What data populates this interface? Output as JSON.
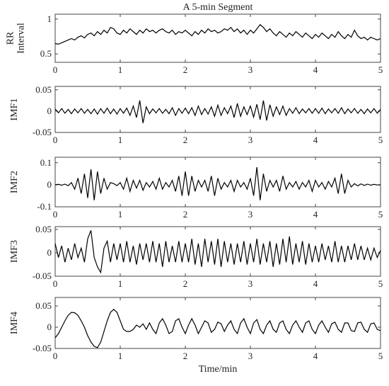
{
  "chart_data": [
    {
      "type": "line",
      "title": "A 5-min Segment",
      "ylabel": [
        "RR",
        "Interval"
      ],
      "x": [
        0,
        0.05,
        0.1,
        0.15,
        0.2,
        0.25,
        0.3,
        0.35,
        0.4,
        0.45,
        0.5,
        0.55,
        0.6,
        0.65,
        0.7,
        0.75,
        0.8,
        0.85,
        0.9,
        0.95,
        1,
        1.05,
        1.1,
        1.15,
        1.2,
        1.25,
        1.3,
        1.35,
        1.4,
        1.45,
        1.5,
        1.55,
        1.6,
        1.65,
        1.7,
        1.75,
        1.8,
        1.85,
        1.9,
        1.95,
        2,
        2.05,
        2.1,
        2.15,
        2.2,
        2.25,
        2.3,
        2.35,
        2.4,
        2.45,
        2.5,
        2.55,
        2.6,
        2.65,
        2.7,
        2.75,
        2.8,
        2.85,
        2.9,
        2.95,
        3,
        3.05,
        3.1,
        3.15,
        3.2,
        3.25,
        3.3,
        3.35,
        3.4,
        3.45,
        3.5,
        3.55,
        3.6,
        3.65,
        3.7,
        3.75,
        3.8,
        3.85,
        3.9,
        3.95,
        4,
        4.05,
        4.1,
        4.15,
        4.2,
        4.25,
        4.3,
        4.35,
        4.4,
        4.45,
        4.5,
        4.55,
        4.6,
        4.65,
        4.7,
        4.75,
        4.8,
        4.85,
        4.9,
        4.95,
        5
      ],
      "values": [
        0.65,
        0.64,
        0.66,
        0.68,
        0.7,
        0.72,
        0.7,
        0.74,
        0.76,
        0.73,
        0.78,
        0.8,
        0.76,
        0.82,
        0.78,
        0.84,
        0.8,
        0.88,
        0.86,
        0.8,
        0.78,
        0.84,
        0.8,
        0.86,
        0.82,
        0.78,
        0.84,
        0.8,
        0.86,
        0.82,
        0.84,
        0.8,
        0.84,
        0.86,
        0.82,
        0.8,
        0.84,
        0.78,
        0.82,
        0.8,
        0.84,
        0.8,
        0.76,
        0.82,
        0.78,
        0.84,
        0.8,
        0.86,
        0.82,
        0.84,
        0.8,
        0.82,
        0.86,
        0.84,
        0.88,
        0.82,
        0.86,
        0.8,
        0.84,
        0.78,
        0.84,
        0.8,
        0.86,
        0.92,
        0.88,
        0.82,
        0.86,
        0.8,
        0.76,
        0.82,
        0.78,
        0.74,
        0.8,
        0.76,
        0.82,
        0.78,
        0.74,
        0.8,
        0.76,
        0.72,
        0.78,
        0.74,
        0.8,
        0.76,
        0.72,
        0.78,
        0.74,
        0.82,
        0.76,
        0.72,
        0.78,
        0.74,
        0.84,
        0.76,
        0.72,
        0.74,
        0.7,
        0.74,
        0.72,
        0.7,
        0.72
      ],
      "color": "#000000",
      "xlim": [
        0,
        5
      ],
      "xticks": [
        0,
        1,
        2,
        3,
        4,
        5
      ],
      "ylim": [
        0.38,
        1.07
      ],
      "yticks": [
        0.5,
        1
      ]
    },
    {
      "type": "line",
      "ylabel": "IMF1",
      "x": [
        0,
        0.05,
        0.1,
        0.15,
        0.2,
        0.25,
        0.3,
        0.35,
        0.4,
        0.45,
        0.5,
        0.55,
        0.6,
        0.65,
        0.7,
        0.75,
        0.8,
        0.85,
        0.9,
        0.95,
        1,
        1.05,
        1.1,
        1.15,
        1.2,
        1.25,
        1.3,
        1.35,
        1.4,
        1.45,
        1.5,
        1.55,
        1.6,
        1.65,
        1.7,
        1.75,
        1.8,
        1.85,
        1.9,
        1.95,
        2,
        2.05,
        2.1,
        2.15,
        2.2,
        2.25,
        2.3,
        2.35,
        2.4,
        2.45,
        2.5,
        2.55,
        2.6,
        2.65,
        2.7,
        2.75,
        2.8,
        2.85,
        2.9,
        2.95,
        3,
        3.05,
        3.1,
        3.15,
        3.2,
        3.25,
        3.3,
        3.35,
        3.4,
        3.45,
        3.5,
        3.55,
        3.6,
        3.65,
        3.7,
        3.75,
        3.8,
        3.85,
        3.9,
        3.95,
        4,
        4.05,
        4.1,
        4.15,
        4.2,
        4.25,
        4.3,
        4.35,
        4.4,
        4.45,
        4.5,
        4.55,
        4.6,
        4.65,
        4.7,
        4.75,
        4.8,
        4.85,
        4.9,
        4.95,
        5
      ],
      "values": [
        0.005,
        -0.004,
        0.006,
        -0.005,
        0.004,
        -0.006,
        0.005,
        -0.004,
        0.006,
        -0.005,
        0.004,
        -0.006,
        0.005,
        -0.007,
        0.006,
        -0.005,
        0.007,
        -0.006,
        0.005,
        -0.007,
        0.006,
        -0.005,
        0.007,
        -0.01,
        0.012,
        -0.015,
        0.025,
        -0.028,
        0.01,
        -0.006,
        0.005,
        -0.004,
        0.006,
        -0.005,
        0.004,
        -0.006,
        0.008,
        -0.01,
        0.006,
        -0.005,
        0.007,
        -0.006,
        0.008,
        -0.01,
        0.012,
        -0.008,
        0.006,
        -0.007,
        0.01,
        -0.012,
        0.014,
        -0.01,
        0.008,
        -0.006,
        0.012,
        -0.015,
        0.018,
        -0.012,
        0.01,
        -0.008,
        0.012,
        -0.014,
        0.016,
        -0.02,
        0.025,
        -0.022,
        0.015,
        -0.012,
        0.01,
        -0.008,
        0.012,
        -0.01,
        0.006,
        -0.005,
        0.008,
        -0.006,
        0.005,
        -0.004,
        0.006,
        -0.005,
        0.006,
        -0.005,
        0.007,
        -0.006,
        0.005,
        -0.004,
        0.006,
        -0.005,
        0.008,
        -0.006,
        0.005,
        -0.004,
        0.006,
        -0.005,
        0.004,
        -0.006,
        0.005,
        -0.004,
        0.006,
        -0.005,
        0.004
      ],
      "color": "#000000",
      "xlim": [
        0,
        5
      ],
      "xticks": [
        0,
        1,
        2,
        3,
        4,
        5
      ],
      "ylim": [
        -0.05,
        0.058
      ],
      "yticks": [
        -0.05,
        0,
        0.05
      ]
    },
    {
      "type": "line",
      "ylabel": "IMF2",
      "x": [
        0,
        0.05,
        0.1,
        0.15,
        0.2,
        0.25,
        0.3,
        0.35,
        0.4,
        0.45,
        0.5,
        0.55,
        0.6,
        0.65,
        0.7,
        0.75,
        0.8,
        0.85,
        0.9,
        0.95,
        1,
        1.05,
        1.1,
        1.15,
        1.2,
        1.25,
        1.3,
        1.35,
        1.4,
        1.45,
        1.5,
        1.55,
        1.6,
        1.65,
        1.7,
        1.75,
        1.8,
        1.85,
        1.9,
        1.95,
        2,
        2.05,
        2.1,
        2.15,
        2.2,
        2.25,
        2.3,
        2.35,
        2.4,
        2.45,
        2.5,
        2.55,
        2.6,
        2.65,
        2.7,
        2.75,
        2.8,
        2.85,
        2.9,
        2.95,
        3,
        3.05,
        3.1,
        3.15,
        3.2,
        3.25,
        3.3,
        3.35,
        3.4,
        3.45,
        3.5,
        3.55,
        3.6,
        3.65,
        3.7,
        3.75,
        3.8,
        3.85,
        3.9,
        3.95,
        4,
        4.05,
        4.1,
        4.15,
        4.2,
        4.25,
        4.3,
        4.35,
        4.4,
        4.45,
        4.5,
        4.55,
        4.6,
        4.65,
        4.7,
        4.75,
        4.8,
        4.85,
        4.9,
        4.95,
        5
      ],
      "values": [
        0,
        0.002,
        -0.002,
        0.003,
        -0.004,
        0.01,
        -0.02,
        0.03,
        -0.04,
        0.05,
        -0.06,
        0.07,
        -0.07,
        0.06,
        -0.04,
        0.03,
        -0.02,
        0.01,
        0.005,
        -0.004,
        0.01,
        -0.02,
        0.03,
        -0.03,
        0.02,
        -0.015,
        0.02,
        -0.025,
        0.01,
        -0.01,
        0.015,
        -0.02,
        0.03,
        -0.02,
        0.01,
        -0.01,
        0.02,
        -0.03,
        0.04,
        -0.05,
        0.06,
        -0.05,
        0.04,
        -0.03,
        0.02,
        -0.01,
        0.02,
        -0.03,
        0.04,
        -0.05,
        0.03,
        -0.02,
        0.01,
        -0.01,
        0.02,
        -0.03,
        0.02,
        -0.01,
        0.01,
        -0.02,
        0.03,
        -0.05,
        0.08,
        -0.07,
        0.05,
        -0.03,
        0.02,
        -0.01,
        0.02,
        -0.03,
        0.04,
        -0.02,
        0.01,
        -0.01,
        0.015,
        -0.02,
        0.01,
        -0.01,
        0.02,
        -0.03,
        0.02,
        -0.01,
        0.01,
        -0.02,
        0.015,
        -0.01,
        0.03,
        -0.04,
        0.05,
        -0.04,
        0.02,
        -0.01,
        0.005,
        -0.005,
        0.004,
        -0.003,
        0.003,
        -0.002,
        0.002,
        -0.001,
        0
      ],
      "color": "#000000",
      "xlim": [
        0,
        5
      ],
      "xticks": [
        0,
        1,
        2,
        3,
        4,
        5
      ],
      "ylim": [
        -0.1,
        0.125
      ],
      "yticks": [
        -0.1,
        0,
        0.1
      ]
    },
    {
      "type": "line",
      "ylabel": "IMF3",
      "x": [
        0,
        0.05,
        0.1,
        0.15,
        0.2,
        0.25,
        0.3,
        0.35,
        0.4,
        0.45,
        0.5,
        0.55,
        0.6,
        0.65,
        0.7,
        0.75,
        0.8,
        0.85,
        0.9,
        0.95,
        1,
        1.05,
        1.1,
        1.15,
        1.2,
        1.25,
        1.3,
        1.35,
        1.4,
        1.45,
        1.5,
        1.55,
        1.6,
        1.65,
        1.7,
        1.75,
        1.8,
        1.85,
        1.9,
        1.95,
        2,
        2.05,
        2.1,
        2.15,
        2.2,
        2.25,
        2.3,
        2.35,
        2.4,
        2.45,
        2.5,
        2.55,
        2.6,
        2.65,
        2.7,
        2.75,
        2.8,
        2.85,
        2.9,
        2.95,
        3,
        3.05,
        3.1,
        3.15,
        3.2,
        3.25,
        3.3,
        3.35,
        3.4,
        3.45,
        3.5,
        3.55,
        3.6,
        3.65,
        3.7,
        3.75,
        3.8,
        3.85,
        3.9,
        3.95,
        4,
        4.05,
        4.1,
        4.15,
        4.2,
        4.25,
        4.3,
        4.35,
        4.4,
        4.45,
        4.5,
        4.55,
        4.6,
        4.65,
        4.7,
        4.75,
        4.8,
        4.85,
        4.9,
        4.95,
        5
      ],
      "values": [
        0.02,
        -0.01,
        0.015,
        -0.02,
        0.01,
        -0.015,
        0.02,
        -0.01,
        0.01,
        -0.02,
        0.03,
        0.048,
        -0.01,
        -0.03,
        -0.042,
        0.01,
        0.025,
        -0.02,
        0.02,
        -0.015,
        0.02,
        -0.02,
        0.025,
        -0.02,
        0.015,
        -0.025,
        0.02,
        -0.015,
        0.02,
        -0.02,
        0.025,
        -0.02,
        0.02,
        -0.03,
        0.025,
        -0.02,
        0.015,
        -0.02,
        0.025,
        -0.02,
        0.02,
        -0.02,
        0.03,
        -0.025,
        0.02,
        -0.03,
        0.03,
        -0.02,
        0.025,
        -0.025,
        0.03,
        -0.03,
        0.025,
        -0.02,
        0.02,
        -0.025,
        0.02,
        -0.02,
        0.025,
        -0.025,
        0.02,
        -0.02,
        0.03,
        -0.025,
        0.02,
        -0.02,
        0.025,
        -0.03,
        0.02,
        -0.025,
        0.03,
        -0.02,
        0.035,
        -0.025,
        0.02,
        -0.02,
        0.025,
        -0.025,
        0.02,
        -0.02,
        0.015,
        -0.02,
        0.02,
        -0.015,
        0.015,
        -0.02,
        0.025,
        -0.02,
        0.015,
        -0.02,
        0.015,
        -0.015,
        0.02,
        -0.015,
        0.015,
        -0.015,
        0.01,
        -0.015,
        0.01,
        -0.01,
        0.005
      ],
      "color": "#000000",
      "xlim": [
        0,
        5
      ],
      "xticks": [
        0,
        1,
        2,
        3,
        4,
        5
      ],
      "ylim": [
        -0.05,
        0.056
      ],
      "yticks": [
        -0.05,
        0,
        0.05
      ]
    },
    {
      "type": "line",
      "ylabel": "IMF4",
      "xlabel": "Time/min",
      "x": [
        0,
        0.05,
        0.1,
        0.15,
        0.2,
        0.25,
        0.3,
        0.35,
        0.4,
        0.45,
        0.5,
        0.55,
        0.6,
        0.65,
        0.7,
        0.75,
        0.8,
        0.85,
        0.9,
        0.95,
        1,
        1.05,
        1.1,
        1.15,
        1.2,
        1.25,
        1.3,
        1.35,
        1.4,
        1.45,
        1.5,
        1.55,
        1.6,
        1.65,
        1.7,
        1.75,
        1.8,
        1.85,
        1.9,
        1.95,
        2,
        2.05,
        2.1,
        2.15,
        2.2,
        2.25,
        2.3,
        2.35,
        2.4,
        2.45,
        2.5,
        2.55,
        2.6,
        2.65,
        2.7,
        2.75,
        2.8,
        2.85,
        2.9,
        2.95,
        3,
        3.05,
        3.1,
        3.15,
        3.2,
        3.25,
        3.3,
        3.35,
        3.4,
        3.45,
        3.5,
        3.55,
        3.6,
        3.65,
        3.7,
        3.75,
        3.8,
        3.85,
        3.9,
        3.95,
        4,
        4.05,
        4.1,
        4.15,
        4.2,
        4.25,
        4.3,
        4.35,
        4.4,
        4.45,
        4.5,
        4.55,
        4.6,
        4.65,
        4.7,
        4.75,
        4.8,
        4.85,
        4.9,
        4.95,
        5
      ],
      "values": [
        -0.025,
        -0.015,
        0.0,
        0.015,
        0.028,
        0.035,
        0.034,
        0.028,
        0.015,
        0.0,
        -0.02,
        -0.035,
        -0.045,
        -0.048,
        -0.035,
        -0.01,
        0.015,
        0.035,
        0.042,
        0.035,
        0.015,
        -0.005,
        -0.01,
        -0.01,
        -0.005,
        0.005,
        0.0,
        0.008,
        -0.005,
        0.01,
        -0.005,
        -0.015,
        0.01,
        0.02,
        0.005,
        -0.015,
        -0.01,
        0.015,
        0.02,
        0.0,
        -0.015,
        0.005,
        0.02,
        0.005,
        -0.015,
        0.0,
        0.015,
        0.01,
        -0.012,
        -0.005,
        0.012,
        0.008,
        -0.01,
        0.005,
        0.015,
        -0.005,
        -0.015,
        0.01,
        0.02,
        0.0,
        -0.015,
        0.01,
        0.018,
        -0.005,
        -0.015,
        0.005,
        0.015,
        -0.005,
        -0.012,
        0.01,
        0.015,
        -0.005,
        -0.015,
        0.005,
        0.015,
        0.0,
        -0.012,
        0.01,
        0.015,
        -0.005,
        -0.015,
        0.005,
        0.015,
        0.0,
        -0.012,
        0.008,
        0.012,
        -0.005,
        -0.012,
        0.01,
        0.01,
        -0.008,
        -0.01,
        0.01,
        0.012,
        -0.005,
        -0.012,
        0.008,
        0.01,
        -0.005,
        -0.008
      ],
      "color": "#000000",
      "xlim": [
        0,
        5
      ],
      "xticks": [
        0,
        1,
        2,
        3,
        4,
        5
      ],
      "ylim": [
        -0.05,
        0.07
      ],
      "yticks": [
        -0.05,
        0,
        0.05
      ]
    }
  ]
}
